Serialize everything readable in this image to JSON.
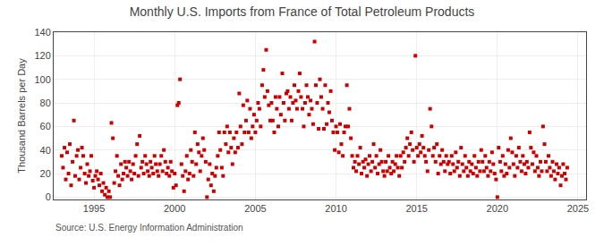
{
  "chart_data": {
    "type": "scatter",
    "title": "Monthly U.S. Imports from France of Total Petroleum Products",
    "y_label": "Thousand Barrels per Day",
    "annotations": [
      "Source: U.S. Energy Information Administration"
    ],
    "color": "#cc0000",
    "marker": "square",
    "grid": true,
    "xlim": [
      1992.5,
      2025.5
    ],
    "ylim": [
      -2,
      140
    ],
    "xticks": [
      1995,
      2000,
      2005,
      2010,
      2015,
      2020,
      2025
    ],
    "yticks": [
      0,
      20,
      40,
      60,
      80,
      100,
      120,
      140
    ],
    "x": [
      1993.0,
      1993.08,
      1993.17,
      1993.25,
      1993.33,
      1993.42,
      1993.5,
      1993.58,
      1993.67,
      1993.75,
      1993.83,
      1993.92,
      1994.0,
      1994.08,
      1994.17,
      1994.25,
      1994.33,
      1994.42,
      1994.5,
      1994.58,
      1994.67,
      1994.75,
      1994.83,
      1994.92,
      1995.0,
      1995.08,
      1995.17,
      1995.25,
      1995.33,
      1995.42,
      1995.5,
      1995.58,
      1995.67,
      1995.75,
      1995.83,
      1995.92,
      1996.0,
      1996.08,
      1996.17,
      1996.25,
      1996.33,
      1996.42,
      1996.5,
      1996.58,
      1996.67,
      1996.75,
      1996.83,
      1996.92,
      1997.0,
      1997.08,
      1997.17,
      1997.25,
      1997.33,
      1997.42,
      1997.5,
      1997.58,
      1997.67,
      1997.75,
      1997.83,
      1997.92,
      1998.0,
      1998.08,
      1998.17,
      1998.25,
      1998.33,
      1998.42,
      1998.5,
      1998.58,
      1998.67,
      1998.75,
      1998.83,
      1998.92,
      1999.0,
      1999.08,
      1999.17,
      1999.25,
      1999.33,
      1999.42,
      1999.5,
      1999.58,
      1999.67,
      1999.75,
      1999.83,
      1999.92,
      2000.0,
      2000.08,
      2000.17,
      2000.25,
      2000.33,
      2000.42,
      2000.5,
      2000.58,
      2000.67,
      2000.75,
      2000.83,
      2000.92,
      2001.0,
      2001.08,
      2001.17,
      2001.25,
      2001.33,
      2001.42,
      2001.5,
      2001.58,
      2001.67,
      2001.75,
      2001.83,
      2001.92,
      2002.0,
      2002.08,
      2002.17,
      2002.25,
      2002.33,
      2002.42,
      2002.5,
      2002.58,
      2002.67,
      2002.75,
      2002.83,
      2002.92,
      2003.0,
      2003.08,
      2003.17,
      2003.25,
      2003.33,
      2003.42,
      2003.5,
      2003.58,
      2003.67,
      2003.75,
      2003.83,
      2003.92,
      2004.0,
      2004.08,
      2004.17,
      2004.25,
      2004.33,
      2004.42,
      2004.5,
      2004.58,
      2004.67,
      2004.75,
      2004.83,
      2004.92,
      2005.0,
      2005.08,
      2005.17,
      2005.25,
      2005.33,
      2005.42,
      2005.5,
      2005.58,
      2005.67,
      2005.75,
      2005.83,
      2005.92,
      2006.0,
      2006.08,
      2006.17,
      2006.25,
      2006.33,
      2006.42,
      2006.5,
      2006.58,
      2006.67,
      2006.75,
      2006.83,
      2006.92,
      2007.0,
      2007.08,
      2007.17,
      2007.25,
      2007.33,
      2007.42,
      2007.5,
      2007.58,
      2007.67,
      2007.75,
      2007.83,
      2007.92,
      2008.0,
      2008.08,
      2008.17,
      2008.25,
      2008.33,
      2008.42,
      2008.5,
      2008.58,
      2008.67,
      2008.75,
      2008.83,
      2008.92,
      2009.0,
      2009.08,
      2009.17,
      2009.25,
      2009.33,
      2009.42,
      2009.5,
      2009.58,
      2009.67,
      2009.75,
      2009.83,
      2009.92,
      2010.0,
      2010.08,
      2010.17,
      2010.25,
      2010.33,
      2010.42,
      2010.5,
      2010.58,
      2010.67,
      2010.75,
      2010.83,
      2010.92,
      2011.0,
      2011.08,
      2011.17,
      2011.25,
      2011.33,
      2011.42,
      2011.5,
      2011.58,
      2011.67,
      2011.75,
      2011.83,
      2011.92,
      2012.0,
      2012.08,
      2012.17,
      2012.25,
      2012.33,
      2012.42,
      2012.5,
      2012.58,
      2012.67,
      2012.75,
      2012.83,
      2012.92,
      2013.0,
      2013.08,
      2013.17,
      2013.25,
      2013.33,
      2013.42,
      2013.5,
      2013.58,
      2013.67,
      2013.75,
      2013.83,
      2013.92,
      2014.0,
      2014.08,
      2014.17,
      2014.25,
      2014.33,
      2014.42,
      2014.5,
      2014.58,
      2014.67,
      2014.75,
      2014.83,
      2014.92,
      2015.0,
      2015.08,
      2015.17,
      2015.25,
      2015.33,
      2015.42,
      2015.5,
      2015.58,
      2015.67,
      2015.75,
      2015.83,
      2015.92,
      2016.0,
      2016.08,
      2016.17,
      2016.25,
      2016.33,
      2016.42,
      2016.5,
      2016.58,
      2016.67,
      2016.75,
      2016.83,
      2016.92,
      2017.0,
      2017.08,
      2017.17,
      2017.25,
      2017.33,
      2017.42,
      2017.5,
      2017.58,
      2017.67,
      2017.75,
      2017.83,
      2017.92,
      2018.0,
      2018.08,
      2018.17,
      2018.25,
      2018.33,
      2018.42,
      2018.5,
      2018.58,
      2018.67,
      2018.75,
      2018.83,
      2018.92,
      2019.0,
      2019.08,
      2019.17,
      2019.25,
      2019.33,
      2019.42,
      2019.5,
      2019.58,
      2019.67,
      2019.75,
      2019.83,
      2019.92,
      2020.0,
      2020.08,
      2020.17,
      2020.25,
      2020.33,
      2020.42,
      2020.5,
      2020.58,
      2020.67,
      2020.75,
      2020.83,
      2020.92,
      2021.0,
      2021.08,
      2021.17,
      2021.25,
      2021.33,
      2021.42,
      2021.5,
      2021.58,
      2021.67,
      2021.75,
      2021.83,
      2021.92,
      2022.0,
      2022.08,
      2022.17,
      2022.25,
      2022.33,
      2022.42,
      2022.5,
      2022.58,
      2022.67,
      2022.75,
      2022.83,
      2022.92,
      2023.0,
      2023.08,
      2023.17,
      2023.25,
      2023.33,
      2023.42,
      2023.5,
      2023.58,
      2023.67,
      2023.75,
      2023.83,
      2023.92,
      2024.0,
      2024.08,
      2024.17,
      2024.25,
      2024.33
    ],
    "values": [
      35,
      25,
      42,
      15,
      38,
      20,
      45,
      10,
      30,
      65,
      18,
      35,
      40,
      15,
      25,
      42,
      35,
      20,
      12,
      28,
      18,
      22,
      35,
      14,
      8,
      18,
      22,
      15,
      10,
      20,
      5,
      12,
      2,
      8,
      0,
      5,
      0,
      63,
      50,
      12,
      22,
      35,
      18,
      10,
      28,
      15,
      20,
      30,
      25,
      18,
      30,
      22,
      15,
      28,
      20,
      35,
      45,
      18,
      52,
      25,
      30,
      20,
      35,
      28,
      22,
      18,
      30,
      25,
      20,
      35,
      28,
      22,
      18,
      28,
      35,
      22,
      40,
      30,
      20,
      25,
      18,
      30,
      22,
      8,
      20,
      10,
      78,
      80,
      100,
      28,
      18,
      5,
      22,
      35,
      15,
      20,
      40,
      30,
      18,
      55,
      28,
      45,
      38,
      22,
      35,
      50,
      40,
      30,
      0,
      15,
      28,
      10,
      20,
      5,
      18,
      25,
      35,
      55,
      40,
      25,
      18,
      55,
      45,
      60,
      38,
      55,
      42,
      28,
      50,
      38,
      55,
      42,
      88,
      60,
      45,
      78,
      55,
      65,
      82,
      55,
      75,
      50,
      60,
      70,
      55,
      65,
      80,
      75,
      60,
      95,
      108,
      85,
      125,
      90,
      78,
      65,
      80,
      65,
      55,
      85,
      75,
      60,
      85,
      70,
      105,
      80,
      65,
      88,
      90,
      75,
      85,
      65,
      80,
      95,
      82,
      75,
      90,
      105,
      85,
      75,
      60,
      80,
      95,
      85,
      70,
      82,
      75,
      62,
      132,
      95,
      80,
      58,
      100,
      85,
      75,
      58,
      95,
      62,
      80,
      72,
      90,
      65,
      55,
      40,
      60,
      55,
      38,
      62,
      45,
      35,
      55,
      60,
      95,
      60,
      75,
      50,
      35,
      25,
      30,
      22,
      35,
      28,
      42,
      20,
      30,
      25,
      32,
      18,
      28,
      35,
      22,
      30,
      45,
      25,
      35,
      20,
      28,
      40,
      30,
      22,
      18,
      30,
      22,
      35,
      25,
      20,
      30,
      22,
      28,
      35,
      25,
      18,
      35,
      25,
      38,
      30,
      42,
      50,
      35,
      45,
      55,
      40,
      30,
      120,
      42,
      35,
      45,
      38,
      52,
      42,
      35,
      30,
      22,
      40,
      75,
      60,
      35,
      42,
      30,
      45,
      20,
      35,
      28,
      40,
      30,
      22,
      35,
      28,
      30,
      20,
      35,
      28,
      22,
      38,
      25,
      30,
      18,
      42,
      28,
      22,
      35,
      25,
      18,
      30,
      22,
      28,
      20,
      35,
      25,
      18,
      30,
      22,
      40,
      30,
      22,
      35,
      25,
      18,
      30,
      22,
      38,
      28,
      20,
      15,
      0,
      42,
      30,
      22,
      35,
      18,
      28,
      20,
      40,
      25,
      50,
      38,
      28,
      18,
      35,
      25,
      42,
      30,
      22,
      35,
      28,
      20,
      30,
      25,
      55,
      42,
      28,
      38,
      22,
      35,
      25,
      18,
      30,
      22,
      60,
      45,
      30,
      22,
      35,
      25,
      18,
      30,
      22,
      15,
      28,
      20,
      25,
      10,
      18,
      28,
      20,
      15,
      25
    ]
  }
}
